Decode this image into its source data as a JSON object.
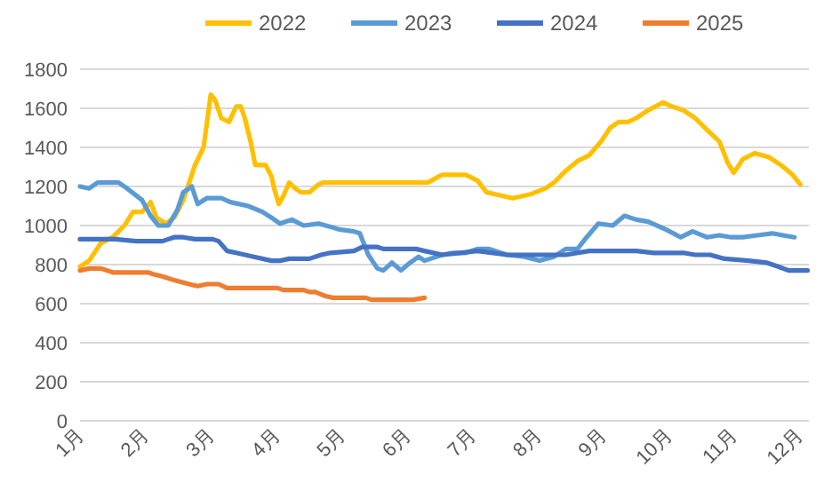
{
  "chart_data": {
    "type": "line",
    "xlim": [
      1,
      12.15
    ],
    "xticks": [
      {
        "value": 1,
        "label": "1月"
      },
      {
        "value": 2,
        "label": "2月"
      },
      {
        "value": 3,
        "label": "3月"
      },
      {
        "value": 4,
        "label": "4月"
      },
      {
        "value": 5,
        "label": "5月"
      },
      {
        "value": 6,
        "label": "6月"
      },
      {
        "value": 7,
        "label": "7月"
      },
      {
        "value": 8,
        "label": "8月"
      },
      {
        "value": 9,
        "label": "9月"
      },
      {
        "value": 10,
        "label": "10月"
      },
      {
        "value": 11,
        "label": "11月"
      },
      {
        "value": 12,
        "label": "12月"
      }
    ],
    "ylim": [
      0,
      1800
    ],
    "yticks": [
      0,
      200,
      400,
      600,
      800,
      1000,
      1200,
      1400,
      1600,
      1800
    ],
    "grid": "y",
    "legend": "top",
    "marker": "none",
    "line_style": "solid",
    "series": [
      {
        "name": "2022",
        "color": "#ffc000",
        "x": [
          1.0,
          1.14,
          1.32,
          1.5,
          1.68,
          1.81,
          1.95,
          2.08,
          2.17,
          2.31,
          2.44,
          2.58,
          2.76,
          2.89,
          3.0,
          3.07,
          3.16,
          3.28,
          3.39,
          3.46,
          3.52,
          3.61,
          3.68,
          3.84,
          3.93,
          3.97,
          4.04,
          4.11,
          4.2,
          4.29,
          4.38,
          4.51,
          4.65,
          4.72,
          5.73,
          6.32,
          6.54,
          6.72,
          6.9,
          7.08,
          7.22,
          7.35,
          7.62,
          7.89,
          8.12,
          8.25,
          8.43,
          8.61,
          8.79,
          8.97,
          9.11,
          9.24,
          9.38,
          9.51,
          9.69,
          9.92,
          10.05,
          10.23,
          10.41,
          10.59,
          10.78,
          10.91,
          11.0,
          11.14,
          11.32,
          11.54,
          11.72,
          11.9,
          12.02
        ],
        "values": [
          790,
          820,
          910,
          940,
          1000,
          1070,
          1070,
          1120,
          1040,
          1010,
          1040,
          1130,
          1310,
          1400,
          1670,
          1640,
          1550,
          1530,
          1610,
          1610,
          1550,
          1430,
          1310,
          1310,
          1250,
          1190,
          1110,
          1150,
          1220,
          1190,
          1170,
          1170,
          1210,
          1220,
          1220,
          1220,
          1260,
          1260,
          1260,
          1230,
          1170,
          1160,
          1140,
          1160,
          1190,
          1220,
          1280,
          1330,
          1360,
          1430,
          1500,
          1530,
          1530,
          1550,
          1590,
          1630,
          1610,
          1590,
          1550,
          1490,
          1430,
          1320,
          1270,
          1340,
          1370,
          1350,
          1310,
          1260,
          1210
        ]
      },
      {
        "name": "2023",
        "color": "#5b9bd5",
        "x": [
          1.0,
          1.14,
          1.27,
          1.59,
          1.72,
          1.95,
          2.08,
          2.2,
          2.35,
          2.49,
          2.58,
          2.71,
          2.8,
          2.94,
          3.16,
          3.3,
          3.57,
          3.79,
          3.93,
          4.06,
          4.24,
          4.42,
          4.65,
          4.87,
          4.96,
          5.19,
          5.28,
          5.41,
          5.55,
          5.64,
          5.77,
          5.91,
          6.05,
          6.18,
          6.27,
          6.54,
          6.72,
          6.9,
          7.08,
          7.26,
          7.53,
          7.8,
          8.03,
          8.25,
          8.43,
          8.61,
          8.75,
          8.93,
          9.15,
          9.33,
          9.51,
          9.69,
          9.96,
          10.19,
          10.37,
          10.59,
          10.78,
          10.96,
          11.14,
          11.36,
          11.59,
          11.75,
          11.93
        ],
        "values": [
          1200,
          1190,
          1220,
          1220,
          1190,
          1130,
          1050,
          1000,
          1000,
          1080,
          1170,
          1200,
          1110,
          1140,
          1140,
          1120,
          1100,
          1070,
          1040,
          1010,
          1030,
          1000,
          1010,
          990,
          980,
          970,
          960,
          850,
          780,
          770,
          810,
          770,
          810,
          840,
          820,
          850,
          860,
          860,
          880,
          880,
          850,
          840,
          820,
          840,
          880,
          880,
          940,
          1010,
          1000,
          1050,
          1030,
          1020,
          980,
          940,
          970,
          940,
          950,
          940,
          940,
          950,
          960,
          950,
          940
        ]
      },
      {
        "name": "2024",
        "color": "#4472c4",
        "x": [
          1.0,
          1.27,
          1.54,
          1.86,
          2.26,
          2.44,
          2.58,
          2.76,
          3.03,
          3.12,
          3.25,
          3.39,
          3.66,
          3.93,
          4.06,
          4.2,
          4.51,
          4.69,
          4.83,
          5.19,
          5.32,
          5.55,
          5.64,
          6.14,
          6.27,
          6.54,
          7.08,
          7.53,
          8.07,
          8.43,
          8.79,
          8.97,
          9.51,
          9.78,
          10.23,
          10.41,
          10.64,
          10.86,
          11.23,
          11.5,
          11.68,
          11.84,
          12.13
        ],
        "values": [
          930,
          930,
          930,
          920,
          920,
          940,
          940,
          930,
          930,
          920,
          870,
          860,
          840,
          820,
          820,
          830,
          830,
          850,
          860,
          870,
          890,
          890,
          880,
          880,
          870,
          850,
          870,
          850,
          850,
          850,
          870,
          870,
          870,
          860,
          860,
          850,
          850,
          830,
          820,
          810,
          790,
          770,
          770
        ]
      },
      {
        "name": "2025",
        "color": "#ed7d31",
        "x": [
          1.0,
          1.14,
          1.32,
          1.5,
          2.04,
          2.13,
          2.26,
          2.44,
          2.67,
          2.8,
          2.94,
          3.12,
          3.25,
          4.02,
          4.11,
          4.42,
          4.51,
          4.6,
          4.74,
          4.87,
          4.96,
          5.37,
          5.46,
          6.09,
          6.27
        ],
        "values": [
          770,
          780,
          780,
          760,
          760,
          750,
          740,
          720,
          700,
          690,
          700,
          700,
          680,
          680,
          670,
          670,
          660,
          660,
          640,
          630,
          630,
          630,
          620,
          620,
          630
        ]
      }
    ]
  }
}
